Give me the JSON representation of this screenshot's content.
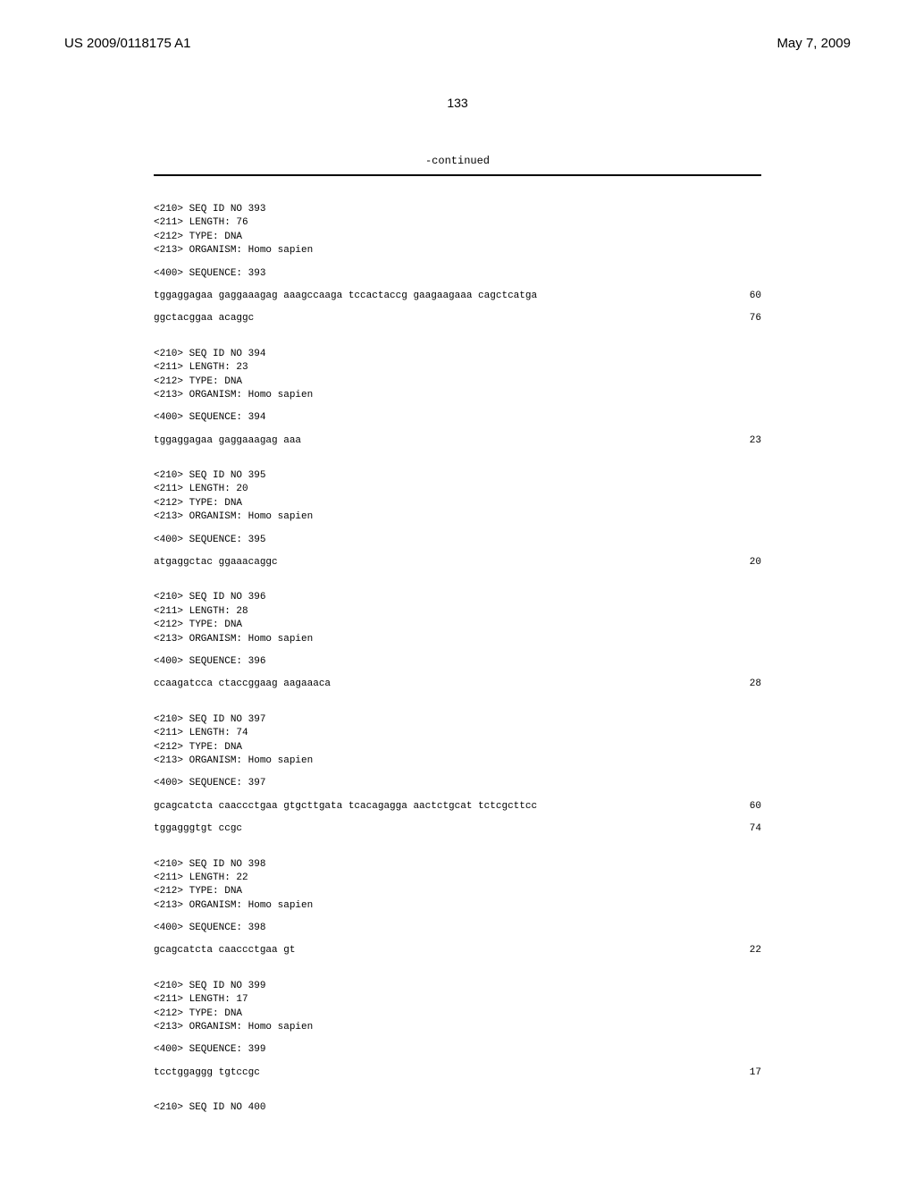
{
  "header": {
    "pub_number": "US 2009/0118175 A1",
    "pub_date": "May 7, 2009",
    "page_number": "133",
    "continued_label": "-continued"
  },
  "sequences": [
    {
      "id_line": "<210> SEQ ID NO 393",
      "length_line": "<211> LENGTH: 76",
      "type_line": "<212> TYPE: DNA",
      "organism_line": "<213> ORGANISM: Homo sapien",
      "sequence_label": "<400> SEQUENCE: 393",
      "rows": [
        {
          "data": "tggaggagaa gaggaaagag aaagccaaga tccactaccg gaagaagaaa cagctcatga",
          "pos": "60"
        },
        {
          "data": "ggctacggaa acaggc",
          "pos": "76"
        }
      ]
    },
    {
      "id_line": "<210> SEQ ID NO 394",
      "length_line": "<211> LENGTH: 23",
      "type_line": "<212> TYPE: DNA",
      "organism_line": "<213> ORGANISM: Homo sapien",
      "sequence_label": "<400> SEQUENCE: 394",
      "rows": [
        {
          "data": "tggaggagaa gaggaaagag aaa",
          "pos": "23"
        }
      ]
    },
    {
      "id_line": "<210> SEQ ID NO 395",
      "length_line": "<211> LENGTH: 20",
      "type_line": "<212> TYPE: DNA",
      "organism_line": "<213> ORGANISM: Homo sapien",
      "sequence_label": "<400> SEQUENCE: 395",
      "rows": [
        {
          "data": "atgaggctac ggaaacaggc",
          "pos": "20"
        }
      ]
    },
    {
      "id_line": "<210> SEQ ID NO 396",
      "length_line": "<211> LENGTH: 28",
      "type_line": "<212> TYPE: DNA",
      "organism_line": "<213> ORGANISM: Homo sapien",
      "sequence_label": "<400> SEQUENCE: 396",
      "rows": [
        {
          "data": "ccaagatcca ctaccggaag aagaaaca",
          "pos": "28"
        }
      ]
    },
    {
      "id_line": "<210> SEQ ID NO 397",
      "length_line": "<211> LENGTH: 74",
      "type_line": "<212> TYPE: DNA",
      "organism_line": "<213> ORGANISM: Homo sapien",
      "sequence_label": "<400> SEQUENCE: 397",
      "rows": [
        {
          "data": "gcagcatcta caaccctgaa gtgcttgata tcacagagga aactctgcat tctcgcttcc",
          "pos": "60"
        },
        {
          "data": "tggagggtgt ccgc",
          "pos": "74"
        }
      ]
    },
    {
      "id_line": "<210> SEQ ID NO 398",
      "length_line": "<211> LENGTH: 22",
      "type_line": "<212> TYPE: DNA",
      "organism_line": "<213> ORGANISM: Homo sapien",
      "sequence_label": "<400> SEQUENCE: 398",
      "rows": [
        {
          "data": "gcagcatcta caaccctgaa gt",
          "pos": "22"
        }
      ]
    },
    {
      "id_line": "<210> SEQ ID NO 399",
      "length_line": "<211> LENGTH: 17",
      "type_line": "<212> TYPE: DNA",
      "organism_line": "<213> ORGANISM: Homo sapien",
      "sequence_label": "<400> SEQUENCE: 399",
      "rows": [
        {
          "data": "tcctggaggg tgtccgc",
          "pos": "17"
        }
      ]
    }
  ],
  "trailing": {
    "id_line": "<210> SEQ ID NO 400"
  }
}
